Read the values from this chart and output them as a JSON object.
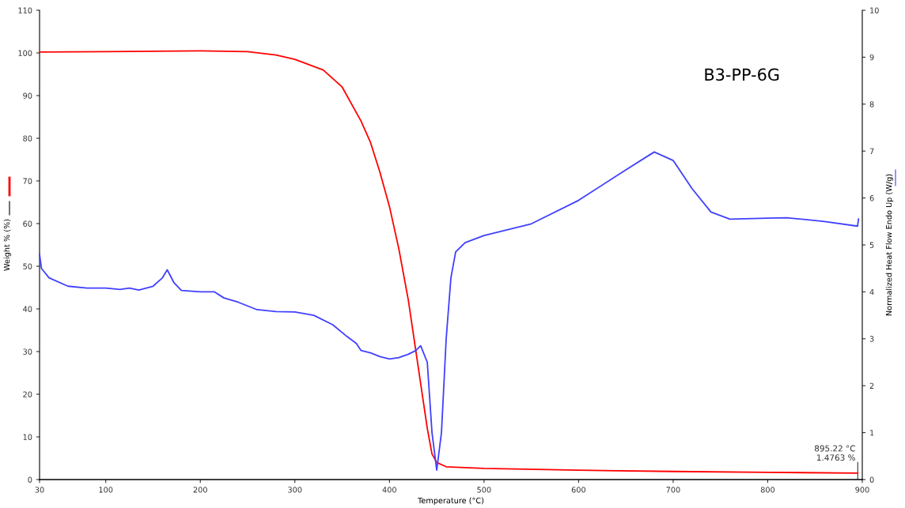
{
  "chart_data": {
    "type": "line",
    "title": "B3-PP-6G",
    "xlabel": "Temperature (°C)",
    "ylabel": "Weight % (%)",
    "y2label": "Normalized Heat Flow Endo Up (W/g)",
    "xlim": [
      30,
      900
    ],
    "xticks": [
      30,
      100,
      200,
      300,
      400,
      500,
      600,
      700,
      800,
      900
    ],
    "ylim": [
      0,
      110
    ],
    "yticks": [
      0,
      10,
      20,
      30,
      40,
      50,
      60,
      70,
      80,
      90,
      100,
      110
    ],
    "y2lim": [
      0,
      10
    ],
    "y2ticks": [
      0,
      1,
      2,
      3,
      4,
      5,
      6,
      7,
      8,
      9,
      10
    ],
    "grid": false,
    "legend": false,
    "marker": "none",
    "line_style": "solid",
    "series": [
      {
        "color": "#ff0000",
        "x": [
          30,
          100,
          200,
          250,
          280,
          300,
          330,
          350,
          370,
          380,
          390,
          400,
          410,
          420,
          430,
          440,
          445,
          450,
          460,
          500,
          600,
          700,
          800,
          895.22
        ],
        "values": [
          100.2,
          100.3,
          100.5,
          100.3,
          99.5,
          98.5,
          96,
          92,
          84,
          79,
          72,
          64,
          54,
          42,
          27,
          12,
          6,
          4,
          3,
          2.6,
          2.2,
          1.9,
          1.7,
          1.5
        ]
      },
      {
        "color": "#4040ff",
        "axis": "y2",
        "x": [
          30,
          32,
          40,
          60,
          80,
          100,
          115,
          125,
          135,
          150,
          160,
          165,
          172,
          180,
          200,
          215,
          225,
          240,
          260,
          280,
          300,
          320,
          340,
          355,
          365,
          370,
          380,
          390,
          400,
          410,
          420,
          428,
          433,
          440,
          445,
          450,
          455,
          460,
          465,
          470,
          480,
          500,
          550,
          600,
          650,
          680,
          700,
          720,
          740,
          760,
          800,
          820,
          860,
          895,
          896
        ],
        "values": [
          4.8,
          4.5,
          4.3,
          4.12,
          4.08,
          4.08,
          4.05,
          4.08,
          4.04,
          4.12,
          4.3,
          4.47,
          4.2,
          4.03,
          4.0,
          4.0,
          3.87,
          3.78,
          3.62,
          3.58,
          3.57,
          3.5,
          3.3,
          3.05,
          2.9,
          2.75,
          2.7,
          2.62,
          2.57,
          2.6,
          2.67,
          2.75,
          2.85,
          2.5,
          1.0,
          0.2,
          1.0,
          3.0,
          4.3,
          4.85,
          5.05,
          5.2,
          5.45,
          5.95,
          6.6,
          6.98,
          6.8,
          6.2,
          5.7,
          5.55,
          5.57,
          5.58,
          5.5,
          5.4,
          5.55
        ]
      }
    ],
    "annotations": [
      {
        "text": "895.22 °C\n1.4763 %",
        "x": 895.22,
        "y": 1.4763
      }
    ]
  }
}
